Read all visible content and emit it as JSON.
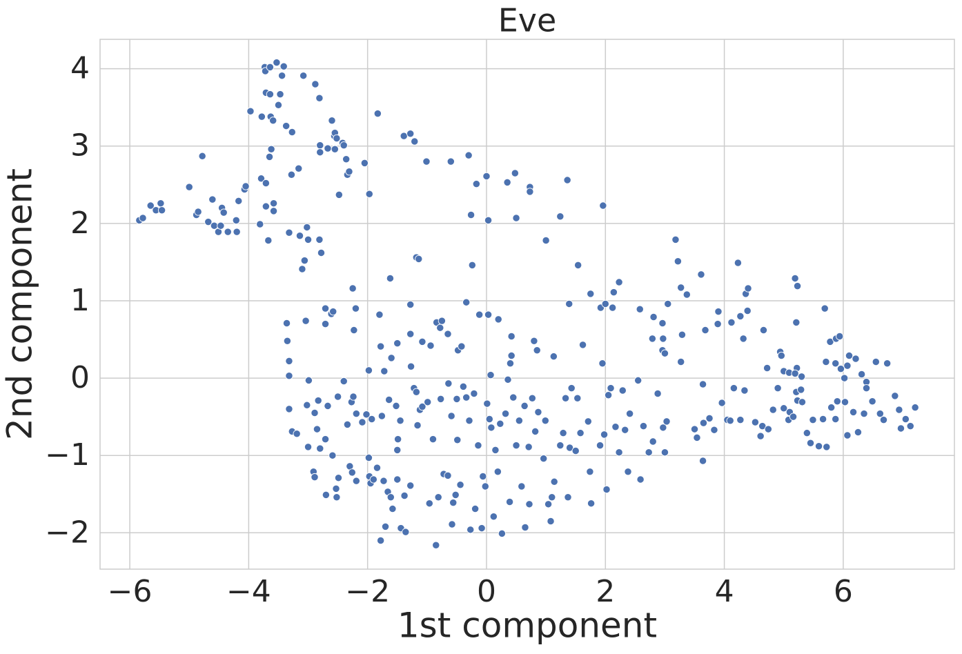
{
  "chart_data": {
    "type": "scatter",
    "title": "Eve",
    "xlabel": "1st component",
    "ylabel": "2nd component",
    "color": "#4c72b0",
    "grid": true,
    "xlim": [
      -6.5,
      7.87
    ],
    "ylim": [
      -2.47,
      4.38
    ],
    "xticks": [
      {
        "value": -6,
        "label": "−6"
      },
      {
        "value": -4,
        "label": "−4"
      },
      {
        "value": -2,
        "label": "−2"
      },
      0,
      2,
      4,
      6
    ],
    "yticks": [
      {
        "value": -2,
        "label": "−2"
      },
      {
        "value": -1,
        "label": "−1"
      },
      0,
      1,
      2,
      3,
      4
    ],
    "x": [
      -5.84,
      -5.78,
      -5.65,
      -5.56,
      -5.48,
      -5.46,
      -5.0,
      -4.88,
      -4.85,
      -4.78,
      -4.68,
      -4.61,
      -4.58,
      -4.51,
      -4.47,
      -4.45,
      -4.42,
      -4.35,
      -4.21,
      -4.2,
      -4.17,
      -4.07,
      -4.05,
      -3.97,
      -3.81,
      -3.79,
      -3.78,
      -3.73,
      -3.72,
      -3.71,
      -3.71,
      -3.71,
      -3.67,
      -3.65,
      -3.64,
      -3.64,
      -3.63,
      -3.62,
      -3.59,
      -3.58,
      -3.58,
      -3.53,
      -3.5,
      -3.47,
      -3.44,
      -3.41,
      -3.37,
      -3.32,
      -3.28,
      -3.27,
      -3.16,
      -3.14,
      -3.1,
      -3.08,
      -3.06,
      -3.02,
      -3.0,
      -2.88,
      -2.81,
      -2.81,
      -2.78,
      -2.8,
      -2.8,
      -2.67,
      -2.6,
      -2.56,
      -2.55,
      -2.55,
      -2.52,
      -2.48,
      -2.42,
      -2.4,
      -2.36,
      -2.34,
      -2.31,
      -2.05,
      -1.97,
      -1.83,
      -1.39,
      -1.28,
      -1.21,
      -1.01,
      -0.6,
      -0.3,
      -0.26,
      -0.17,
      0.0,
      0.03,
      0.35,
      0.48,
      0.5,
      0.73,
      0.73,
      1.0,
      1.24,
      1.36,
      1.96,
      1.54,
      -1.18,
      -1.14,
      -1.62,
      -0.24,
      -3.36,
      -3.35,
      -3.32,
      -3.32,
      -3.04,
      -2.71,
      -2.71,
      -2.61,
      -2.58,
      -2.25,
      -2.2,
      -2.23,
      -1.8,
      -1.78,
      -1.98,
      -1.72,
      -1.6,
      -1.5,
      -1.28,
      -1.28,
      -1.27,
      -1.08,
      -0.94,
      -0.84,
      -0.75,
      -0.78,
      -0.65,
      -0.48,
      -0.42,
      -0.34,
      -0.12,
      0.03,
      0.2,
      0.07,
      0.4,
      0.42,
      0.42,
      0.8,
      0.85,
      1.13,
      1.62,
      1.39,
      1.75,
      1.92,
      1.95,
      2.0,
      2.14,
      2.12,
      2.23,
      2.58,
      2.81,
      2.79,
      2.96,
      2.97,
      2.96,
      3.0,
      3.05,
      3.18,
      3.22,
      3.27,
      3.29,
      3.27,
      3.37,
      3.61,
      3.68,
      3.89,
      3.9,
      4.12,
      4.23,
      4.27,
      4.32,
      4.36,
      4.4,
      4.39,
      4.66,
      4.72,
      4.94,
      4.96,
      5.0,
      5.09,
      5.19,
      5.23,
      5.21,
      5.22,
      5.19,
      5.3,
      5.69,
      5.71,
      5.78,
      5.88,
      5.94,
      5.87,
      5.96,
      6.02,
      6.07,
      6.1,
      6.21,
      6.31,
      6.39,
      6.55,
      6.74,
      -3.32,
      -3.27,
      -3.19,
      -3.0,
      -2.99,
      -3.02,
      -2.91,
      -2.89,
      -2.89,
      -2.83,
      -2.85,
      -2.8,
      -2.71,
      -2.7,
      -2.67,
      -2.59,
      -2.53,
      -2.52,
      -2.5,
      -2.49,
      -2.4,
      -2.34,
      -2.27,
      -2.24,
      -2.3,
      -2.26,
      -2.19,
      -2.19,
      -2.09,
      -2.02,
      -1.98,
      -1.97,
      -1.95,
      -1.93,
      -1.9,
      -1.84,
      -1.78,
      -1.76,
      -1.73,
      -1.7,
      -1.66,
      -1.64,
      -1.61,
      -1.58,
      -1.52,
      -1.5,
      -1.49,
      -1.5,
      -1.45,
      -1.44,
      -1.38,
      -1.36,
      -1.28,
      -1.22,
      -1.18,
      -1.16,
      -1.12,
      -1.08,
      -0.99,
      -0.96,
      -0.9,
      -0.85,
      -0.81,
      -0.77,
      -0.72,
      -0.65,
      -0.64,
      -0.59,
      -0.58,
      -0.56,
      -0.52,
      -0.5,
      -0.49,
      -0.44,
      -0.39,
      -0.34,
      -0.29,
      -0.27,
      -0.21,
      -0.19,
      -0.14,
      -0.08,
      -0.06,
      -0.02,
      0.01,
      0.05,
      0.08,
      0.12,
      0.15,
      0.19,
      0.23,
      0.26,
      0.32,
      0.36,
      0.39,
      0.45,
      0.5,
      0.55,
      0.59,
      0.64,
      0.65,
      0.71,
      0.72,
      0.77,
      0.82,
      0.87,
      0.96,
      0.99,
      1.04,
      1.08,
      1.1,
      1.14,
      1.24,
      1.29,
      1.33,
      1.37,
      1.4,
      1.43,
      1.5,
      1.53,
      1.58,
      1.71,
      1.74,
      1.76,
      1.91,
      1.98,
      2.02,
      2.05,
      2.09,
      2.17,
      2.23,
      2.29,
      2.33,
      2.38,
      2.41,
      2.55,
      2.59,
      2.64,
      2.73,
      2.8,
      2.88,
      2.97,
      3.0,
      3.03,
      3.5,
      3.54,
      3.64,
      3.65,
      3.64,
      3.75,
      3.83,
      3.96,
      4.05,
      4.1,
      4.16,
      4.27,
      4.34,
      4.52,
      4.61,
      4.64,
      4.74,
      4.82,
      4.9,
      5.0,
      5.08,
      5.1,
      5.16,
      5.21,
      5.23,
      5.31,
      5.29,
      5.39,
      5.45,
      5.49,
      5.59,
      5.66,
      5.72,
      5.8,
      5.87,
      5.9,
      6.03,
      6.07,
      6.17,
      6.25,
      6.35,
      6.39,
      6.49,
      6.62,
      6.68,
      6.87,
      6.94,
      6.97,
      7.05,
      7.13,
      7.21
    ],
    "y": [
      2.04,
      2.07,
      2.23,
      2.17,
      2.26,
      2.17,
      2.47,
      2.11,
      2.15,
      2.87,
      2.02,
      2.31,
      1.97,
      1.89,
      1.97,
      2.2,
      2.14,
      1.89,
      2.04,
      1.89,
      2.29,
      2.44,
      2.48,
      3.45,
      1.99,
      2.58,
      3.38,
      4.02,
      3.97,
      3.69,
      2.52,
      2.22,
      1.78,
      2.86,
      4.02,
      3.67,
      3.38,
      2.96,
      3.33,
      2.26,
      2.16,
      4.08,
      3.53,
      3.67,
      3.91,
      4.03,
      3.26,
      1.88,
      2.63,
      3.18,
      2.71,
      1.84,
      1.41,
      3.91,
      1.52,
      1.95,
      1.79,
      3.8,
      3.62,
      1.79,
      1.62,
      3.01,
      2.92,
      2.97,
      3.33,
      3.13,
      3.17,
      2.96,
      3.1,
      2.37,
      3.04,
      3.01,
      2.83,
      2.63,
      2.67,
      2.78,
      2.38,
      3.42,
      3.13,
      3.16,
      3.06,
      2.8,
      2.8,
      2.88,
      2.11,
      2.51,
      2.61,
      2.04,
      2.53,
      2.65,
      2.07,
      2.47,
      2.41,
      1.78,
      2.09,
      2.56,
      2.23,
      1.46,
      1.56,
      1.54,
      1.29,
      1.46,
      0.71,
      0.48,
      0.22,
      0.03,
      0.74,
      0.9,
      0.7,
      0.83,
      0.86,
      1.16,
      0.9,
      0.62,
      0.82,
      0.41,
      0.1,
      0.09,
      0.26,
      0.45,
      0.95,
      0.57,
      0.15,
      0.47,
      0.42,
      0.72,
      0.74,
      0.65,
      0.57,
      0.36,
      0.41,
      0.98,
      0.82,
      0.82,
      0.76,
      0.04,
      0.19,
      0.54,
      0.29,
      0.48,
      0.36,
      0.28,
      0.43,
      0.96,
      1.09,
      0.91,
      0.19,
      0.96,
      1.11,
      0.91,
      1.24,
      0.89,
      0.79,
      0.51,
      0.71,
      0.51,
      0.36,
      0.32,
      0.96,
      1.79,
      1.51,
      1.17,
      0.56,
      0.21,
      1.08,
      1.34,
      0.62,
      0.7,
      0.86,
      0.72,
      1.49,
      0.8,
      0.51,
      1.09,
      1.16,
      0.87,
      0.62,
      0.13,
      0.34,
      0.29,
      0.09,
      0.07,
      1.29,
      1.19,
      0.72,
      0.13,
      0.06,
      0.02,
      0.9,
      0.21,
      0.47,
      0.51,
      0.54,
      0.19,
      0.12,
      0.0,
      0.16,
      0.29,
      0.25,
      0.05,
      -0.05,
      0.21,
      0.19,
      -0.4,
      -0.69,
      -0.72,
      -0.89,
      -0.03,
      -0.35,
      -1.21,
      -1.28,
      -0.45,
      -0.29,
      -0.66,
      -0.91,
      -0.79,
      -1.51,
      -0.36,
      -1.0,
      -1.43,
      -1.54,
      -0.24,
      -1.29,
      -0.04,
      -0.6,
      -0.31,
      -0.24,
      -1.14,
      -1.22,
      -1.33,
      -0.46,
      -0.57,
      -0.47,
      -1.03,
      -1.27,
      -1.36,
      -0.53,
      -1.31,
      -1.16,
      -2.1,
      -0.49,
      -1.33,
      -1.92,
      -1.47,
      -0.28,
      -1.54,
      -1.69,
      -0.36,
      -1.31,
      -0.79,
      -0.93,
      -0.55,
      -1.94,
      -1.52,
      -1.99,
      -1.39,
      -0.13,
      -0.18,
      -0.61,
      -0.41,
      -0.37,
      -0.31,
      -1.62,
      -0.79,
      -2.16,
      -1.54,
      -0.27,
      -1.24,
      -1.26,
      -0.07,
      -0.49,
      -1.89,
      -1.61,
      -1.51,
      -0.27,
      -0.8,
      -1.38,
      -0.11,
      -0.25,
      -0.55,
      -1.96,
      -0.2,
      -1.69,
      -0.87,
      -1.94,
      -1.27,
      -1.4,
      -0.33,
      -0.53,
      -0.64,
      -1.79,
      -0.93,
      -1.21,
      -0.59,
      -2.01,
      -0.46,
      -0.02,
      -1.6,
      -0.25,
      -0.87,
      -0.55,
      -1.4,
      -0.36,
      -1.93,
      -0.89,
      -1.63,
      -0.26,
      -0.69,
      -0.44,
      -1.04,
      -0.55,
      -1.63,
      -1.85,
      -1.54,
      -1.34,
      -0.87,
      -0.71,
      -0.26,
      -1.54,
      -0.9,
      -0.13,
      -0.94,
      -0.26,
      -0.71,
      -0.56,
      -1.21,
      -1.62,
      -0.87,
      -0.73,
      -1.44,
      -0.22,
      -0.13,
      -0.63,
      -0.96,
      -0.16,
      -0.67,
      -1.21,
      -0.46,
      -0.03,
      -1.31,
      -0.62,
      -0.96,
      -0.82,
      -0.2,
      -0.64,
      -0.96,
      -0.56,
      -0.66,
      -0.77,
      -0.08,
      -0.58,
      -1.07,
      -0.52,
      -0.67,
      -0.32,
      -0.54,
      -0.55,
      -0.13,
      -0.54,
      -0.16,
      -0.57,
      -0.75,
      -0.62,
      -0.66,
      -0.41,
      -0.13,
      -0.39,
      -0.54,
      -0.44,
      -0.5,
      -0.18,
      -0.29,
      -0.31,
      -0.15,
      -0.71,
      -0.84,
      -0.54,
      -0.88,
      -0.53,
      -0.89,
      -0.38,
      -0.53,
      -0.3,
      -0.31,
      -0.74,
      -0.44,
      -0.7,
      -0.46,
      -0.13,
      -0.3,
      -0.46,
      -0.54,
      -0.23,
      -0.41,
      -0.65,
      -0.53,
      -0.62,
      -0.38
    ]
  }
}
